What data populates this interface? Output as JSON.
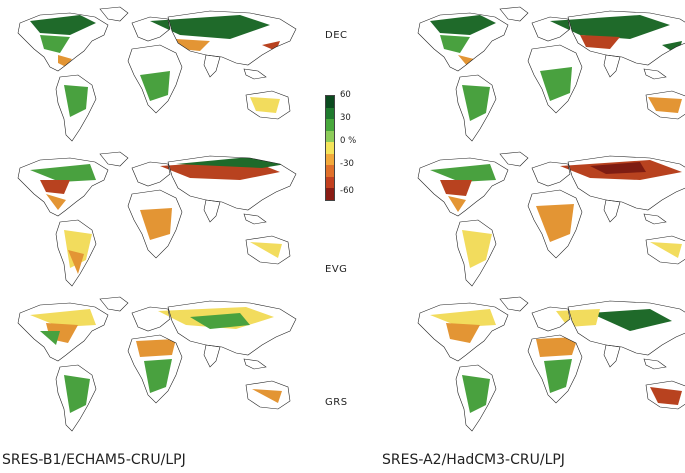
{
  "row_labels": {
    "dec": "DEC",
    "evg": "EVG",
    "grs": "GRS"
  },
  "scenarios": {
    "left": "SRES-B1/ECHAM5-CRU/LPJ",
    "right": "SRES-A2/HadCM3-CRU/LPJ"
  },
  "colorbar": {
    "ticks": [
      "60",
      "30",
      "0 %",
      "-30",
      "-60"
    ],
    "colors": [
      "#0b4a1f",
      "#1f7a2e",
      "#48a83c",
      "#8dcc5a",
      "#f4e45a",
      "#f2a93b",
      "#e0702a",
      "#c2401f",
      "#8a1c14"
    ]
  },
  "colors": {
    "dark_green": "#1f6a2a",
    "green": "#49a13f",
    "light_green": "#9ccf6a",
    "yellow": "#f2dc5d",
    "orange": "#e39534",
    "red": "#b8421f",
    "dark_red": "#7e1c12"
  }
}
